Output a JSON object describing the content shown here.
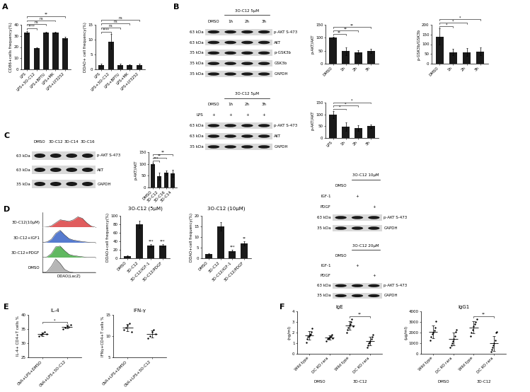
{
  "panel_labels": [
    "A",
    "B",
    "C",
    "D",
    "E",
    "F"
  ],
  "chart_data": [
    {
      "type": "bar",
      "ylabel": "CD86+cells frequency(%)",
      "categories": [
        "LPS",
        "LPS+3O-C12",
        "LPS+BPTU",
        "LPS+MK",
        "LPS+LY3252"
      ],
      "values": [
        33,
        19,
        33,
        33,
        28
      ],
      "errors": [
        1.5,
        0.5,
        0.8,
        0.5,
        1.2
      ],
      "color": "#1a1a1a",
      "ylim": [
        0,
        40
      ],
      "yticks": [
        0,
        10,
        20,
        30,
        40
      ],
      "significance": [
        {
          "pair": [
            0,
            1
          ],
          "label": "****"
        },
        {
          "pair": [
            0,
            2
          ],
          "label": "ns"
        },
        {
          "pair": [
            0,
            3
          ],
          "label": "ns"
        },
        {
          "pair": [
            0,
            4
          ],
          "label": "**"
        }
      ]
    },
    {
      "type": "bar",
      "ylabel": "DDAO+ cell frequency(%)",
      "categories": [
        "LPS",
        "LPS+3O-C12",
        "LPS+BPTU",
        "LPS+MK",
        "LPS+LY3252"
      ],
      "values": [
        1.5,
        9.3,
        1.5,
        1.5,
        1.5
      ],
      "errors": [
        0.3,
        2.5,
        0.3,
        0.2,
        0.3
      ],
      "color": "#1a1a1a",
      "ylim": [
        0,
        15
      ],
      "yticks": [
        0,
        5,
        10,
        15
      ],
      "significance": [
        {
          "pair": [
            0,
            1
          ],
          "label": "****"
        },
        {
          "pair": [
            0,
            2
          ],
          "label": "ns"
        },
        {
          "pair": [
            0,
            3
          ],
          "label": "ns"
        },
        {
          "pair": [
            0,
            4
          ],
          "label": "ns"
        }
      ]
    },
    {
      "type": "bar",
      "ylabel": "p-AKT/AKT",
      "categories": [
        "DMSO",
        "1h",
        "2h",
        "3h"
      ],
      "values": [
        100,
        48,
        45,
        50
      ],
      "errors": [
        5,
        15,
        8,
        8
      ],
      "color": "#1a1a1a",
      "ylim": [
        0,
        150
      ],
      "yticks": [
        0,
        50,
        100,
        150
      ],
      "significance": [
        {
          "pair": [
            0,
            1
          ],
          "label": "**"
        },
        {
          "pair": [
            0,
            2
          ],
          "label": "**"
        },
        {
          "pair": [
            0,
            3
          ],
          "label": "**"
        }
      ]
    },
    {
      "type": "bar",
      "ylabel": "p-GSK3b/GSK3b",
      "categories": [
        "DMSO",
        "1h",
        "2h",
        "3h"
      ],
      "values": [
        140,
        60,
        60,
        62
      ],
      "errors": [
        40,
        15,
        20,
        20
      ],
      "color": "#1a1a1a",
      "ylim": [
        0,
        200
      ],
      "yticks": [
        0,
        50,
        100,
        150,
        200
      ],
      "significance": [
        {
          "pair": [
            0,
            1
          ],
          "label": "*"
        },
        {
          "pair": [
            0,
            2
          ],
          "label": "*"
        },
        {
          "pair": [
            0,
            3
          ],
          "label": "*"
        }
      ]
    },
    {
      "type": "bar",
      "ylabel": "p-AKT/AKT",
      "categories": [
        "LPS",
        "1h",
        "2h",
        "3h"
      ],
      "values": [
        100,
        48,
        42,
        50
      ],
      "errors": [
        15,
        18,
        12,
        8
      ],
      "color": "#1a1a1a",
      "ylim": [
        0,
        150
      ],
      "yticks": [
        0,
        50,
        100,
        150
      ],
      "significance": [
        {
          "pair": [
            0,
            1
          ],
          "label": "*"
        },
        {
          "pair": [
            0,
            2
          ],
          "label": "*"
        },
        {
          "pair": [
            0,
            3
          ],
          "label": "*"
        }
      ]
    },
    {
      "type": "bar",
      "ylabel": "p-AKT/AKT",
      "categories": [
        "DMSO",
        "3O-C12",
        "3O-C16",
        "3O-C14"
      ],
      "values": [
        100,
        48,
        63,
        60
      ],
      "errors": [
        5,
        15,
        10,
        15
      ],
      "color": "#1a1a1a",
      "ylim": [
        0,
        150
      ],
      "yticks": [
        0,
        50,
        100,
        150
      ],
      "significance": [
        {
          "pair": [
            0,
            1
          ],
          "label": "***"
        },
        {
          "pair": [
            0,
            2
          ],
          "label": "**"
        },
        {
          "pair": [
            0,
            3
          ],
          "label": "**"
        }
      ]
    },
    {
      "type": "bar",
      "title": "3O-C12 (5μM)",
      "ylabel": "DDAO+cell frequency(%)",
      "categories": [
        "DMSO",
        "3O-C12",
        "3O-C12/IGF-1",
        "3O-C12/PDGF"
      ],
      "values": [
        5,
        80,
        30,
        30
      ],
      "errors": [
        2,
        8,
        4,
        4
      ],
      "color": "#1a1a1a",
      "ylim": [
        0,
        100
      ],
      "yticks": [
        0,
        20,
        40,
        60,
        80,
        100
      ],
      "significance": [
        {
          "at": 2,
          "label": "***"
        },
        {
          "at": 3,
          "label": "***"
        }
      ]
    },
    {
      "type": "bar",
      "title": "3O-C12 (10μM)",
      "ylabel": "DDAO+cell frequency(%)",
      "categories": [
        "DMSO",
        "3O-C12",
        "3O-C12/IGF-1",
        "3O-C12/PDGF"
      ],
      "values": [
        2,
        15,
        3.5,
        7
      ],
      "errors": [
        0.5,
        2,
        0.5,
        1
      ],
      "color": "#1a1a1a",
      "ylim": [
        0,
        20
      ],
      "yticks": [
        0,
        5,
        10,
        15,
        20
      ],
      "significance": [
        {
          "at": 2,
          "label": "***"
        },
        {
          "at": 3,
          "label": "**"
        }
      ]
    },
    {
      "type": "density",
      "xlabel": "DDAO(LacZ)",
      "tick_labels": false,
      "x": [
        0,
        1,
        2,
        3,
        4,
        5,
        6,
        7,
        8,
        9,
        10,
        11,
        12
      ],
      "xlim": [
        0,
        12
      ],
      "ylim": [
        0,
        100
      ],
      "series": [
        {
          "name": "3O-C12(10μM)",
          "color": "#d62728",
          "values": [
            0,
            2,
            10,
            30,
            50,
            45,
            40,
            50,
            70,
            60,
            30,
            8,
            0
          ]
        },
        {
          "name": "3O-C12+IGF1",
          "color": "#1f4fbf",
          "values": [
            0,
            3,
            20,
            60,
            80,
            50,
            25,
            15,
            10,
            5,
            2,
            0,
            0
          ]
        },
        {
          "name": "3O-C12+PDGF",
          "color": "#2ca02c",
          "values": [
            0,
            3,
            25,
            70,
            75,
            45,
            20,
            12,
            8,
            4,
            1,
            0,
            0
          ]
        },
        {
          "name": "DMSO",
          "color": "#9e9e9e",
          "values": [
            0,
            5,
            40,
            90,
            60,
            20,
            5,
            0,
            0,
            0,
            0,
            0,
            0
          ]
        }
      ]
    },
    {
      "type": "dotplot",
      "title": "IL-4",
      "ylabel": "IL-4+ CD4+T cells %",
      "marker": "circle",
      "color": "#000000",
      "categories": [
        "OVA+LPS+DMSO",
        "OVA+LPS+3O-C12"
      ],
      "points": [
        [
          32.5,
          33,
          33.5,
          34,
          33.2
        ],
        [
          35,
          35.5,
          36,
          35.8,
          36.5
        ]
      ],
      "means": [
        33.2,
        35.8
      ],
      "errors": [
        0.6,
        0.6
      ],
      "ylim": [
        25,
        40
      ],
      "yticks": [
        25,
        30,
        35,
        40
      ],
      "significance": [
        {
          "pair": [
            0,
            1
          ],
          "label": "*"
        }
      ]
    },
    {
      "type": "dotplot",
      "title": "IFN-γ",
      "ylabel": "IFNγ+CD4+T cells %",
      "marker": "circle",
      "color": "#000000",
      "categories": [
        "OVA+LPS+DMSO",
        "OVA+LPS+3O-C12"
      ],
      "points": [
        [
          11.5,
          12,
          12.5,
          13,
          11
        ],
        [
          9.5,
          10,
          11,
          11.5,
          10.5
        ]
      ],
      "means": [
        12,
        10.5
      ],
      "errors": [
        0.8,
        0.8
      ],
      "ylim": [
        5,
        15
      ],
      "yticks": [
        5,
        10,
        15
      ]
    },
    {
      "type": "dotplot",
      "title": "IgE",
      "ylabel": "(ng/ml)",
      "marker": "circle",
      "color": "#000000",
      "categories": [
        "Wild type",
        "DC KO rara",
        "Wild type",
        "DC KO rara"
      ],
      "groups": [
        {
          "label": "DMSO",
          "from": 0,
          "to": 1
        },
        {
          "label": "3O-C12",
          "from": 2,
          "to": 3
        }
      ],
      "points": [
        [
          1.1,
          1.4,
          1.6,
          1.7,
          1.8,
          1.9,
          2.1,
          2.4
        ],
        [
          1.2,
          1.4,
          1.5,
          1.5,
          1.6,
          1.7,
          1.8,
          1.5
        ],
        [
          2.0,
          2.3,
          2.5,
          2.7,
          2.8,
          3.0,
          3.3,
          2.6
        ],
        [
          0.6,
          0.8,
          1.0,
          1.1,
          1.2,
          1.4,
          1.6,
          1.8
        ]
      ],
      "means": [
        1.75,
        1.55,
        2.65,
        1.2
      ],
      "errors": [
        0.4,
        0.2,
        0.4,
        0.4
      ],
      "ylim": [
        0,
        4
      ],
      "yticks": [
        0,
        1,
        2,
        3,
        4
      ],
      "significance": [
        {
          "pair": [
            2,
            3
          ],
          "label": "**"
        }
      ]
    },
    {
      "type": "dotplot",
      "title": "IgG1",
      "ylabel": "(μg/ml)",
      "marker": "circle",
      "color": "#000000",
      "categories": [
        "Wild type",
        "DC KO rara",
        "Wild type",
        "DC KO rara"
      ],
      "groups": [
        {
          "label": "DMSO",
          "from": 0,
          "to": 1
        },
        {
          "label": "3O-C12",
          "from": 2,
          "to": 3
        }
      ],
      "points": [
        [
          1300,
          1600,
          1900,
          2000,
          2200,
          2500,
          3100
        ],
        [
          600,
          800,
          1000,
          1200,
          1400,
          1700,
          2100,
          2300
        ],
        [
          1700,
          2000,
          2300,
          2600,
          2800,
          3000,
          3300
        ],
        [
          200,
          400,
          600,
          800,
          1000,
          1300,
          2000,
          2100
        ]
      ],
      "means": [
        2100,
        1400,
        2500,
        1000
      ],
      "errors": [
        600,
        600,
        550,
        700
      ],
      "ylim": [
        0,
        4000
      ],
      "yticks": [
        0,
        1000,
        2000,
        3000,
        4000
      ],
      "significance": [
        {
          "pair": [
            2,
            3
          ],
          "label": "**"
        }
      ]
    }
  ],
  "blots": [
    {
      "lanes": [
        "DMSO",
        "1h",
        "2h",
        "3h"
      ],
      "header": {
        "text": "3O-C12 5μM",
        "from": 1,
        "to": 3
      },
      "conditions": [],
      "rows": [
        {
          "label": "p-AKT S-473",
          "marker": "63 kDa"
        },
        {
          "label": "AKT",
          "marker": "63 kDa"
        },
        {
          "label": "p-GSK3b",
          "marker": "35 kDa"
        },
        {
          "label": "GSK3b",
          "marker": "35 kDa"
        },
        {
          "label": "GAPDH",
          "marker": "35 kDa"
        }
      ]
    },
    {
      "lanes": [
        "DMSO",
        "1h",
        "2h",
        "3h"
      ],
      "header": {
        "text": "3O-C12 5μM",
        "from": 1,
        "to": 3
      },
      "conditions": [
        {
          "label": "LPS",
          "marks": [
            "+",
            "+",
            "+",
            "+"
          ]
        }
      ],
      "rows": [
        {
          "label": "p-AKT S-473",
          "marker": "63 kDa"
        },
        {
          "label": "AKT",
          "marker": "63 kDa"
        },
        {
          "label": "GAPDH",
          "marker": "35 kDa"
        }
      ]
    },
    {
      "lanes": [
        "DMSO",
        "3O-C12",
        "3O-C14",
        "3O-C16"
      ],
      "conditions": [],
      "rows": [
        {
          "label": "p-AKT S-473",
          "marker": "63 kDa"
        },
        {
          "label": "AKT",
          "marker": "63 kDa"
        },
        {
          "label": "GAPDH",
          "marker": "35 kDa"
        }
      ]
    },
    {
      "lanes": [
        "DMSO",
        null,
        null
      ],
      "header": {
        "text": "3O-C12 10μM",
        "from": 1,
        "to": 2
      },
      "conditions": [
        {
          "label": "IGF-1",
          "marks": [
            null,
            "+",
            null
          ]
        },
        {
          "label": "PDGF",
          "marks": [
            null,
            null,
            "+"
          ]
        }
      ],
      "rows": [
        {
          "label": "p-AKT S-473",
          "marker": "63 kDa"
        },
        {
          "label": "GAPDH",
          "marker": "35 kDa"
        }
      ]
    },
    {
      "lanes": [
        "DMSO",
        null,
        null
      ],
      "header": {
        "text": "3O-C12 20μM",
        "from": 1,
        "to": 2
      },
      "conditions": [
        {
          "label": "IGF-1",
          "marks": [
            null,
            "+",
            null
          ]
        },
        {
          "label": "PDGF",
          "marks": [
            null,
            null,
            "+"
          ]
        }
      ],
      "rows": [
        {
          "label": "p-AKT S-473",
          "marker": "63 kDa"
        },
        {
          "label": "GAPDH",
          "marker": "35 kDa"
        }
      ]
    }
  ]
}
